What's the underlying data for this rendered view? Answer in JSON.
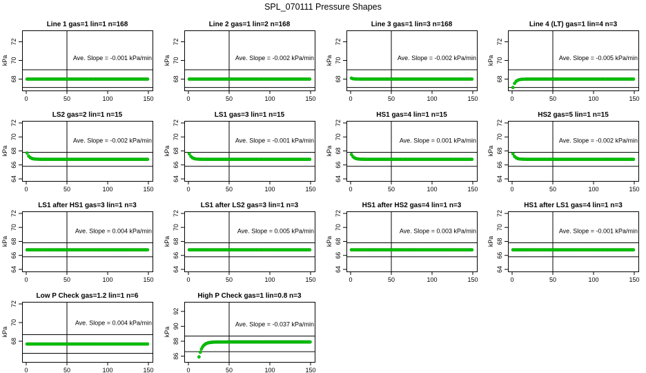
{
  "figure_title": "SPL_070111  Pressure Shapes",
  "colors": {
    "points": "#00cc00",
    "point_stroke": "#009900",
    "axes": "#000000",
    "background": "#ffffff"
  },
  "chart_data": [
    {
      "type": "scatter",
      "title": "Line 1 gas=1 lin=1 n=168",
      "ylabel": "kPa",
      "xlim": [
        0,
        150
      ],
      "ylim": [
        67,
        73
      ],
      "xticks": [
        0,
        50,
        100,
        150
      ],
      "yticks": [
        68,
        70,
        72
      ],
      "hlines": [
        69,
        67.1
      ],
      "vline": 50,
      "annotation": "Ave. Slope =  -0.001  kPa/min",
      "shape": {
        "start": 68,
        "plateau": 68,
        "tau": 0,
        "from": 1,
        "to": 150,
        "step": 2
      }
    },
    {
      "type": "scatter",
      "title": "Line 2 gas=1 lin=2 n=168",
      "ylabel": "kPa",
      "xlim": [
        0,
        150
      ],
      "ylim": [
        67,
        73
      ],
      "xticks": [
        0,
        50,
        100,
        150
      ],
      "yticks": [
        68,
        70,
        72
      ],
      "hlines": [
        69,
        67.1
      ],
      "vline": 50,
      "annotation": "Ave. Slope =  -0.002  kPa/min",
      "shape": {
        "start": 68,
        "plateau": 68,
        "tau": 0,
        "from": 1,
        "to": 150,
        "step": 2
      }
    },
    {
      "type": "scatter",
      "title": "Line 3 gas=1 lin=3 n=168",
      "ylabel": "kPa",
      "xlim": [
        0,
        150
      ],
      "ylim": [
        67,
        73
      ],
      "xticks": [
        0,
        50,
        100,
        150
      ],
      "yticks": [
        68,
        70,
        72
      ],
      "hlines": [
        69,
        67.1
      ],
      "vline": 50,
      "annotation": "Ave. Slope =  -0.002  kPa/min",
      "shape": {
        "start": 68.1,
        "plateau": 68,
        "tau": 2,
        "from": 1,
        "to": 150,
        "step": 2
      }
    },
    {
      "type": "scatter",
      "title": "Line 4 (LT) gas=1 lin=4 n=3",
      "ylabel": "kPa",
      "xlim": [
        0,
        150
      ],
      "ylim": [
        67,
        73
      ],
      "xticks": [
        0,
        50,
        100,
        150
      ],
      "yticks": [
        68,
        70,
        72
      ],
      "hlines": [
        69,
        67.1
      ],
      "vline": 50,
      "annotation": "Ave. Slope =  -0.005  kPa/min",
      "shape": {
        "start": 67.1,
        "plateau": 68,
        "tau": 3,
        "from": 1,
        "to": 150,
        "step": 2
      }
    },
    {
      "type": "scatter",
      "title": "LS2 gas=2 lin=1 n=15",
      "ylabel": "kPa",
      "xlim": [
        0,
        150
      ],
      "ylim": [
        64,
        72
      ],
      "xticks": [
        0,
        50,
        100,
        150
      ],
      "yticks": [
        64,
        66,
        68,
        70,
        72
      ],
      "hlines": [
        67.8,
        65.8
      ],
      "vline": 50,
      "annotation": "Ave. Slope =  -0.002  kPa/min",
      "shape": {
        "start": 67.7,
        "plateau": 66.8,
        "tau": 3,
        "from": 1,
        "to": 150,
        "step": 2
      }
    },
    {
      "type": "scatter",
      "title": "LS1 gas=3 lin=1 n=15",
      "ylabel": "kPa",
      "xlim": [
        0,
        150
      ],
      "ylim": [
        64,
        72
      ],
      "xticks": [
        0,
        50,
        100,
        150
      ],
      "yticks": [
        64,
        66,
        68,
        70,
        72
      ],
      "hlines": [
        67.8,
        65.8
      ],
      "vline": 50,
      "annotation": "Ave. Slope =  -0.001  kPa/min",
      "shape": {
        "start": 67.6,
        "plateau": 66.8,
        "tau": 3,
        "from": 1,
        "to": 150,
        "step": 2
      }
    },
    {
      "type": "scatter",
      "title": "HS1 gas=4 lin=1 n=15",
      "ylabel": "kPa",
      "xlim": [
        0,
        150
      ],
      "ylim": [
        64,
        72
      ],
      "xticks": [
        0,
        50,
        100,
        150
      ],
      "yticks": [
        64,
        66,
        68,
        70,
        72
      ],
      "hlines": [
        67.8,
        65.8
      ],
      "vline": 50,
      "annotation": "Ave. Slope =  0.001  kPa/min",
      "shape": {
        "start": 67.5,
        "plateau": 66.8,
        "tau": 3,
        "from": 1,
        "to": 150,
        "step": 2
      }
    },
    {
      "type": "scatter",
      "title": "HS2 gas=5 lin=1 n=15",
      "ylabel": "kPa",
      "xlim": [
        0,
        150
      ],
      "ylim": [
        64,
        72
      ],
      "xticks": [
        0,
        50,
        100,
        150
      ],
      "yticks": [
        64,
        66,
        68,
        70,
        72
      ],
      "hlines": [
        67.8,
        65.8
      ],
      "vline": 50,
      "annotation": "Ave. Slope =  -0.002  kPa/min",
      "shape": {
        "start": 67.6,
        "plateau": 66.8,
        "tau": 3,
        "from": 1,
        "to": 150,
        "step": 2
      }
    },
    {
      "type": "scatter",
      "title": "LS1 after HS1 gas=3 lin=1 n=3",
      "ylabel": "kPa",
      "xlim": [
        0,
        150
      ],
      "ylim": [
        64,
        72
      ],
      "xticks": [
        0,
        50,
        100,
        150
      ],
      "yticks": [
        64,
        66,
        68,
        70,
        72
      ],
      "hlines": [
        67.8,
        65.8
      ],
      "vline": 50,
      "annotation": "Ave. Slope =  0.004  kPa/min",
      "shape": {
        "start": 66.8,
        "plateau": 66.8,
        "tau": 0,
        "from": 1,
        "to": 150,
        "step": 2
      }
    },
    {
      "type": "scatter",
      "title": "LS1 after LS2 gas=3 lin=1 n=3",
      "ylabel": "kPa",
      "xlim": [
        0,
        150
      ],
      "ylim": [
        64,
        72
      ],
      "xticks": [
        0,
        50,
        100,
        150
      ],
      "yticks": [
        64,
        66,
        68,
        70,
        72
      ],
      "hlines": [
        67.8,
        65.8
      ],
      "vline": 50,
      "annotation": "Ave. Slope =  0.005  kPa/min",
      "shape": {
        "start": 66.8,
        "plateau": 66.8,
        "tau": 0,
        "from": 1,
        "to": 150,
        "step": 2
      }
    },
    {
      "type": "scatter",
      "title": "HS1 after HS2 gas=4 lin=1 n=3",
      "ylabel": "kPa",
      "xlim": [
        0,
        150
      ],
      "ylim": [
        64,
        72
      ],
      "xticks": [
        0,
        50,
        100,
        150
      ],
      "yticks": [
        64,
        66,
        68,
        70,
        72
      ],
      "hlines": [
        67.8,
        65.8
      ],
      "vline": 50,
      "annotation": "Ave. Slope =  0.003  kPa/min",
      "shape": {
        "start": 66.8,
        "plateau": 66.8,
        "tau": 0,
        "from": 1,
        "to": 150,
        "step": 2
      }
    },
    {
      "type": "scatter",
      "title": "HS1 after LS1 gas=4 lin=1 n=3",
      "ylabel": "kPa",
      "xlim": [
        0,
        150
      ],
      "ylim": [
        64,
        72
      ],
      "xticks": [
        0,
        50,
        100,
        150
      ],
      "yticks": [
        64,
        66,
        68,
        70,
        72
      ],
      "hlines": [
        67.8,
        65.8
      ],
      "vline": 50,
      "annotation": "Ave. Slope =  -0.001  kPa/min",
      "shape": {
        "start": 66.8,
        "plateau": 66.8,
        "tau": 0,
        "from": 1,
        "to": 150,
        "step": 2
      }
    },
    {
      "type": "scatter",
      "title": "Low P Check gas=1.2 lin=1 n=6",
      "ylabel": "kPa",
      "xlim": [
        0,
        150
      ],
      "ylim": [
        66,
        72
      ],
      "xticks": [
        0,
        50,
        100,
        150
      ],
      "yticks": [
        68,
        70,
        72
      ],
      "hlines": [
        68.7,
        66.7
      ],
      "vline": 50,
      "annotation": "Ave. Slope =  0.004  kPa/min",
      "shape": {
        "start": 67.7,
        "plateau": 67.7,
        "tau": 0,
        "from": 1,
        "to": 150,
        "step": 2
      }
    },
    {
      "type": "scatter",
      "title": "High P Check gas=1 lin=0.8 n=3",
      "ylabel": "kPa",
      "xlim": [
        0,
        150
      ],
      "ylim": [
        85.5,
        93
      ],
      "xticks": [
        0,
        50,
        100,
        150
      ],
      "yticks": [
        86,
        88,
        90,
        92
      ],
      "hlines": [
        88.7,
        86.6
      ],
      "vline": 50,
      "annotation": "Ave. Slope =  -0.037  kPa/min",
      "shape": {
        "start": 85.9,
        "plateau": 87.9,
        "tau": 4,
        "from": 13,
        "to": 150,
        "step": 1.5
      }
    }
  ]
}
